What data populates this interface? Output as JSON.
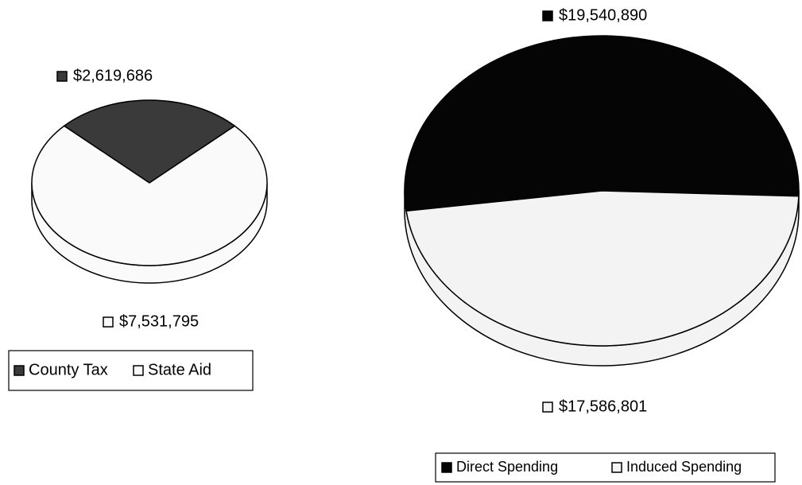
{
  "chart_data": [
    {
      "type": "pie",
      "categories": [
        "County Tax",
        "State Aid"
      ],
      "values": [
        2619686,
        7531795
      ],
      "value_labels": [
        "$2,619,686",
        "$7,531,795"
      ],
      "colors": [
        "#3a3a3a",
        "#fafafa"
      ]
    },
    {
      "type": "pie",
      "categories": [
        "Direct Spending",
        "Induced Spending"
      ],
      "values": [
        19540890,
        17586801
      ],
      "value_labels": [
        "$19,540,890",
        "$17,586,801"
      ],
      "colors": [
        "#050505",
        "#f3f3f3"
      ]
    }
  ]
}
